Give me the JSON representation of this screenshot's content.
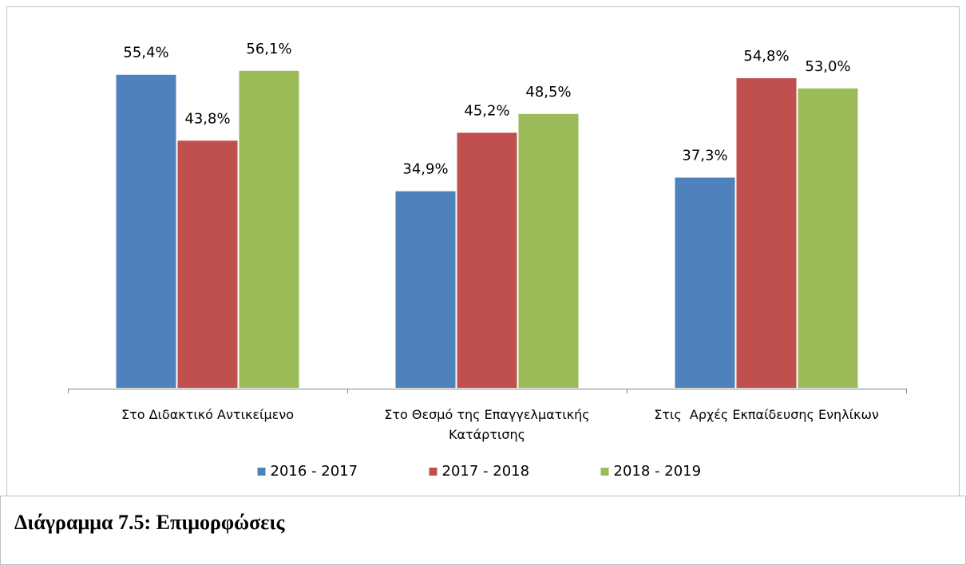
{
  "chart_data": {
    "type": "bar",
    "categories": [
      "Στο Διδακτικό Αντικείμενο",
      "Στο Θεσμό της Επαγγελματικής Κατάρτισης",
      "Στις  Αρχές Εκπαίδευσης Ενηλίκων"
    ],
    "series": [
      {
        "name": "2016 - 2017",
        "color": "#4f81bd",
        "values": [
          55.4,
          34.9,
          37.3
        ],
        "value_labels": [
          "55,4%",
          "34,9%",
          "37,3%"
        ]
      },
      {
        "name": "2017 - 2018",
        "color": "#c0504d",
        "values": [
          43.8,
          45.2,
          54.8
        ],
        "value_labels": [
          "43,8%",
          "45,2%",
          "54,8%"
        ]
      },
      {
        "name": "2018 - 2019",
        "color": "#9bbb59",
        "values": [
          56.1,
          48.5,
          53.0
        ],
        "value_labels": [
          "56,1%",
          "48,5%",
          "53,0%"
        ]
      }
    ],
    "ylim": [
      0,
      60
    ],
    "legend": "bottom",
    "caption": "Διάγραμμα 7.5:  Επιμορφώσεις"
  }
}
